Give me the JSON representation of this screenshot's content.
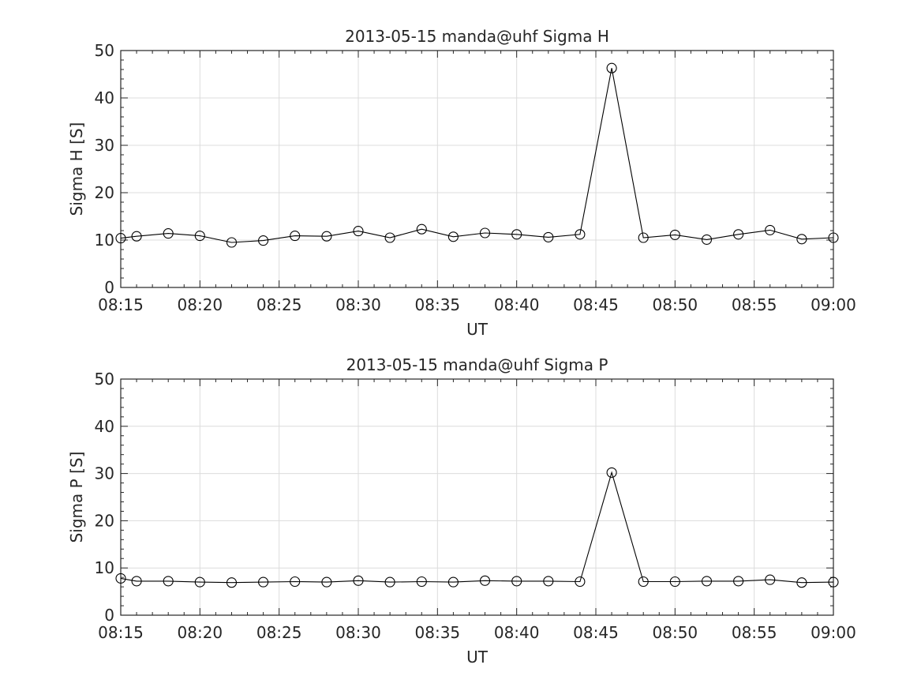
{
  "chart_data": [
    {
      "type": "line",
      "title": "2013-05-15  manda@uhf Sigma H",
      "xlabel": "UT",
      "ylabel": "Sigma H [S]",
      "x_tick_labels": [
        "08:15",
        "08:20",
        "08:25",
        "08:30",
        "08:35",
        "08:40",
        "08:45",
        "08:50",
        "08:55",
        "09:00"
      ],
      "y_tick_labels": [
        "0",
        "10",
        "20",
        "30",
        "40",
        "50"
      ],
      "xlim": [
        "08:15",
        "09:00"
      ],
      "ylim": [
        0,
        50
      ],
      "grid": true,
      "marker": "open-circle",
      "color": "#000000",
      "x": [
        "08:15",
        "08:16",
        "08:18",
        "08:20",
        "08:22",
        "08:24",
        "08:26",
        "08:28",
        "08:30",
        "08:32",
        "08:34",
        "08:36",
        "08:38",
        "08:40",
        "08:42",
        "08:44",
        "08:46",
        "08:48",
        "08:50",
        "08:52",
        "08:54",
        "08:56",
        "08:58",
        "09:00"
      ],
      "values": [
        10.4,
        10.8,
        11.4,
        10.9,
        9.5,
        9.9,
        10.9,
        10.8,
        11.9,
        10.5,
        12.3,
        10.7,
        11.5,
        11.2,
        10.6,
        11.2,
        46.3,
        10.5,
        11.1,
        10.1,
        11.2,
        12.1,
        10.2,
        10.5
      ]
    },
    {
      "type": "line",
      "title": "2013-05-15  manda@uhf Sigma P",
      "xlabel": "UT",
      "ylabel": "Sigma P [S]",
      "x_tick_labels": [
        "08:15",
        "08:20",
        "08:25",
        "08:30",
        "08:35",
        "08:40",
        "08:45",
        "08:50",
        "08:55",
        "09:00"
      ],
      "y_tick_labels": [
        "0",
        "10",
        "20",
        "30",
        "40",
        "50"
      ],
      "xlim": [
        "08:15",
        "09:00"
      ],
      "ylim": [
        0,
        50
      ],
      "grid": true,
      "marker": "open-circle",
      "color": "#000000",
      "x": [
        "08:15",
        "08:16",
        "08:18",
        "08:20",
        "08:22",
        "08:24",
        "08:26",
        "08:28",
        "08:30",
        "08:32",
        "08:34",
        "08:36",
        "08:38",
        "08:40",
        "08:42",
        "08:44",
        "08:46",
        "08:48",
        "08:50",
        "08:52",
        "08:54",
        "08:56",
        "08:58",
        "09:00"
      ],
      "values": [
        7.8,
        7.2,
        7.2,
        7.0,
        6.9,
        7.0,
        7.1,
        7.0,
        7.3,
        7.0,
        7.1,
        7.0,
        7.3,
        7.2,
        7.2,
        7.1,
        30.2,
        7.1,
        7.1,
        7.2,
        7.2,
        7.5,
        6.9,
        7.0
      ]
    }
  ]
}
